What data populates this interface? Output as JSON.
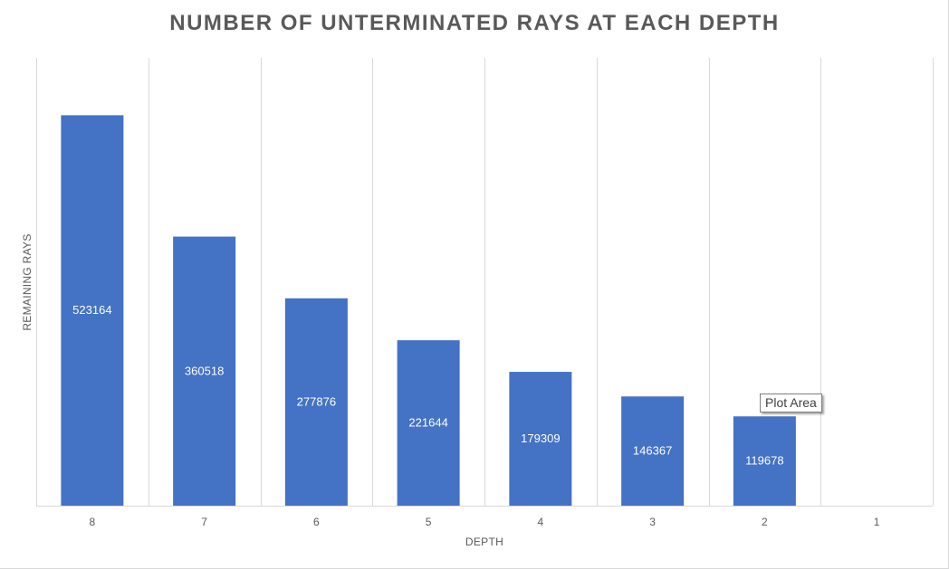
{
  "chart_data": {
    "type": "bar",
    "title": "NUMBER OF UNTERMINATED RAYS AT EACH DEPTH",
    "xlabel": "DEPTH",
    "ylabel": "REMAINING RAYS",
    "categories": [
      "8",
      "7",
      "6",
      "5",
      "4",
      "3",
      "2",
      "1"
    ],
    "values": [
      523164,
      360518,
      277876,
      221644,
      179309,
      146367,
      119678,
      null
    ],
    "data_labels": [
      "523164",
      "360518",
      "277876",
      "221644",
      "179309",
      "146367",
      "119678",
      ""
    ],
    "ylim": [
      0,
      600000
    ],
    "grid": "vertical category lines",
    "legend": "none",
    "bar_color": "#4472c4",
    "gridline_color": "#d9d9d9"
  },
  "tooltip": {
    "text": "Plot Area"
  }
}
